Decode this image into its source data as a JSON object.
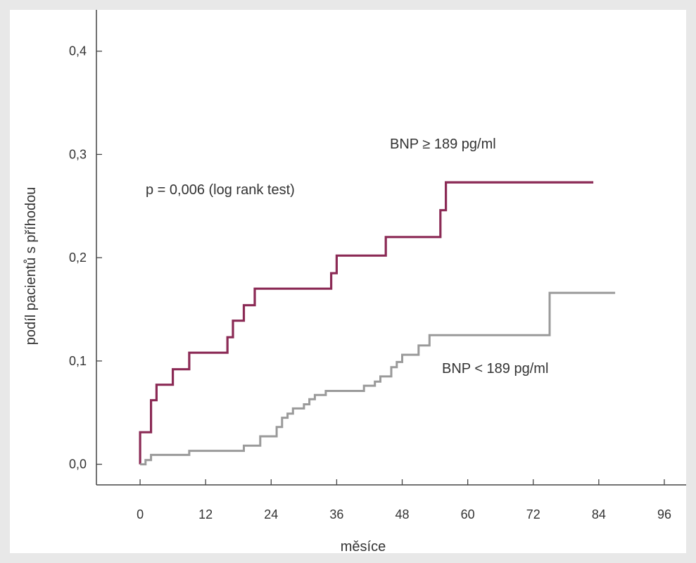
{
  "chart_data": {
    "type": "line",
    "step": true,
    "xlabel": "měsíce",
    "ylabel": "podíl pacientů s příhodou",
    "xlim": [
      -8,
      100
    ],
    "ylim": [
      -0.02,
      0.44
    ],
    "x_ticks": [
      0,
      12,
      24,
      36,
      48,
      60,
      72,
      84,
      96
    ],
    "x_tick_labels": [
      "0",
      "12",
      "24",
      "36",
      "48",
      "60",
      "72",
      "84",
      "96"
    ],
    "y_ticks": [
      0.0,
      0.1,
      0.2,
      0.3,
      0.4
    ],
    "y_tick_labels": [
      "0,0",
      "0,1",
      "0,2",
      "0,3",
      "0,4"
    ],
    "grid": false,
    "annotations": {
      "pvalue": "p = 0,006  (log rank test)",
      "high_label": "BNP ≥ 189 pg/ml",
      "low_label": "BNP < 189 pg/ml"
    },
    "series": [
      {
        "name": "BNP ≥ 189 pg/ml",
        "color": "#8b2a55",
        "x": [
          0,
          0,
          2,
          3,
          6,
          9,
          16,
          17,
          19,
          21,
          35,
          36,
          45,
          55,
          56,
          83
        ],
        "y": [
          0.0,
          0.031,
          0.062,
          0.077,
          0.092,
          0.108,
          0.123,
          0.139,
          0.154,
          0.17,
          0.185,
          0.202,
          0.22,
          0.246,
          0.273,
          0.273
        ]
      },
      {
        "name": "BNP < 189 pg/ml",
        "color": "#9a9a9a",
        "x": [
          0,
          1,
          2,
          9,
          19,
          22,
          25,
          26,
          27,
          28,
          30,
          31,
          32,
          34,
          41,
          43,
          44,
          46,
          47,
          48,
          51,
          53,
          75,
          87
        ],
        "y": [
          0.0,
          0.004,
          0.009,
          0.013,
          0.018,
          0.027,
          0.036,
          0.045,
          0.049,
          0.054,
          0.058,
          0.063,
          0.067,
          0.071,
          0.076,
          0.08,
          0.085,
          0.094,
          0.099,
          0.106,
          0.115,
          0.125,
          0.166,
          0.166
        ]
      }
    ]
  }
}
